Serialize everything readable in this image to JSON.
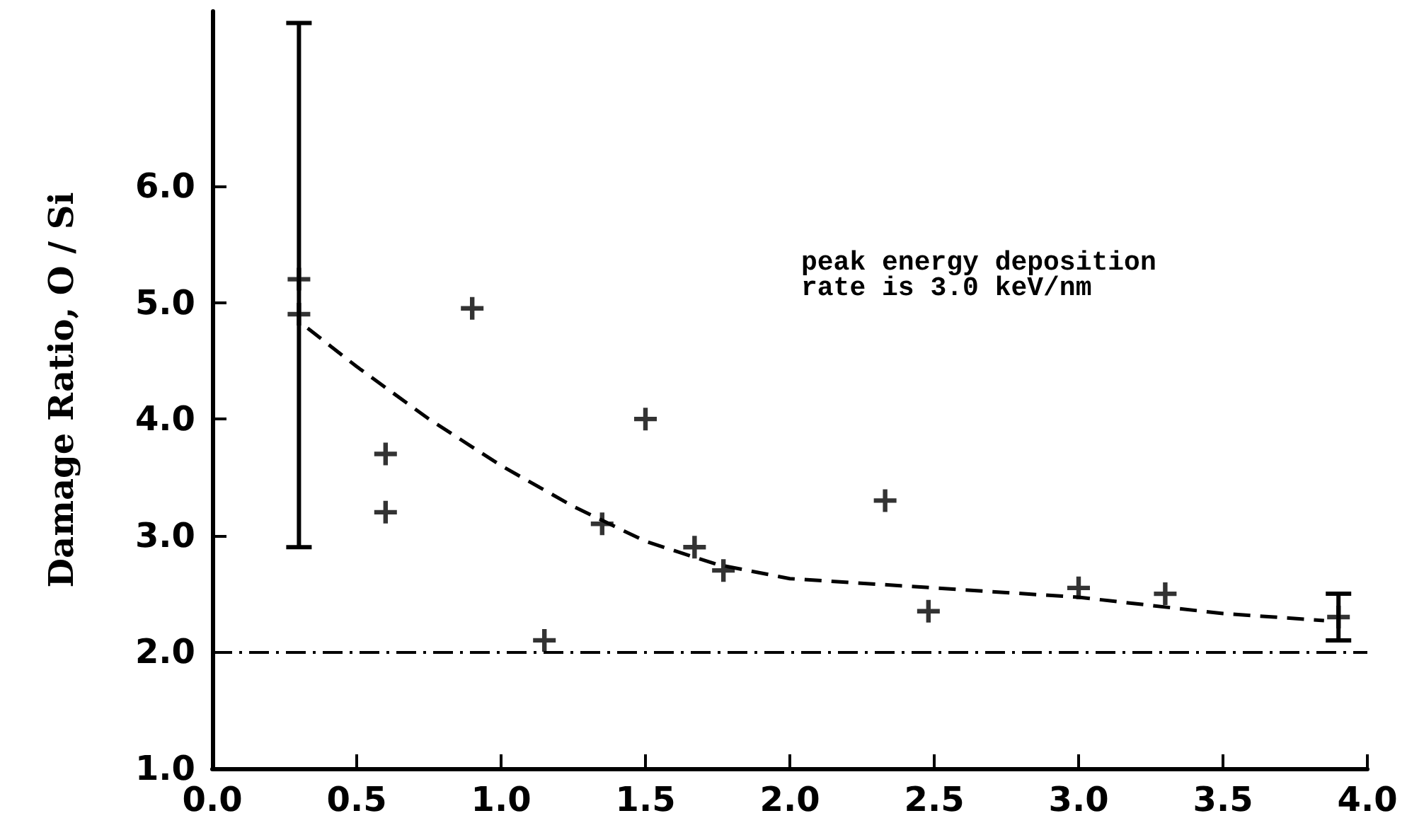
{
  "chart_data": {
    "type": "scatter",
    "ylabel": "Damage Ratio, O / Si",
    "annotations": [
      "peak energy deposition\nrate is 3.0 keV/nm"
    ],
    "xlim": [
      0,
      4
    ],
    "xticks": [
      {
        "value": 0,
        "label": "0.0"
      },
      0.5,
      {
        "value": 1,
        "label": "1.0"
      },
      1.5,
      {
        "value": 2,
        "label": "2.0"
      },
      2.5,
      {
        "value": 3,
        "label": "3.0"
      },
      3.5,
      {
        "value": 4,
        "label": "4.0"
      }
    ],
    "ylim": [
      1,
      7.5
    ],
    "yticks": [
      {
        "value": 1,
        "label": "1.0"
      },
      {
        "value": 2,
        "label": "2.0"
      },
      {
        "value": 3,
        "label": "3.0"
      },
      {
        "value": 4,
        "label": "4.0"
      },
      {
        "value": 5,
        "label": "5.0"
      },
      {
        "value": 6,
        "label": "6.0"
      }
    ],
    "grid": false,
    "series": [
      {
        "color": "#000000",
        "marker": "cross",
        "x": [
          0.3,
          0.3,
          0.6,
          0.6,
          0.9,
          1.15,
          1.35,
          1.5,
          1.67,
          1.77,
          2.33,
          2.48,
          3.0,
          3.3,
          3.9
        ],
        "values": [
          5.2,
          4.9,
          3.7,
          3.2,
          4.95,
          2.1,
          3.1,
          4.0,
          2.9,
          2.7,
          3.3,
          2.35,
          2.55,
          2.5,
          2.3
        ],
        "errors": [
          [
            2.9,
            7.4
          ],
          null,
          null,
          null,
          null,
          null,
          null,
          null,
          null,
          null,
          null,
          null,
          null,
          null,
          [
            2.1,
            2.5
          ]
        ]
      },
      {
        "type": "line",
        "color": "#000000",
        "marker": "none",
        "line_style": "dashed",
        "x": [
          0.33,
          0.5,
          0.75,
          1.0,
          1.25,
          1.5,
          1.75,
          2.0,
          2.5,
          3.0,
          3.5,
          3.85
        ],
        "values": [
          4.78,
          4.45,
          4.0,
          3.6,
          3.25,
          2.95,
          2.75,
          2.63,
          2.55,
          2.47,
          2.33,
          2.27
        ]
      }
    ],
    "ref_lines": [
      {
        "axis": "y",
        "value": 2.0,
        "color": "#000000",
        "line_style": "dashdot"
      }
    ]
  }
}
